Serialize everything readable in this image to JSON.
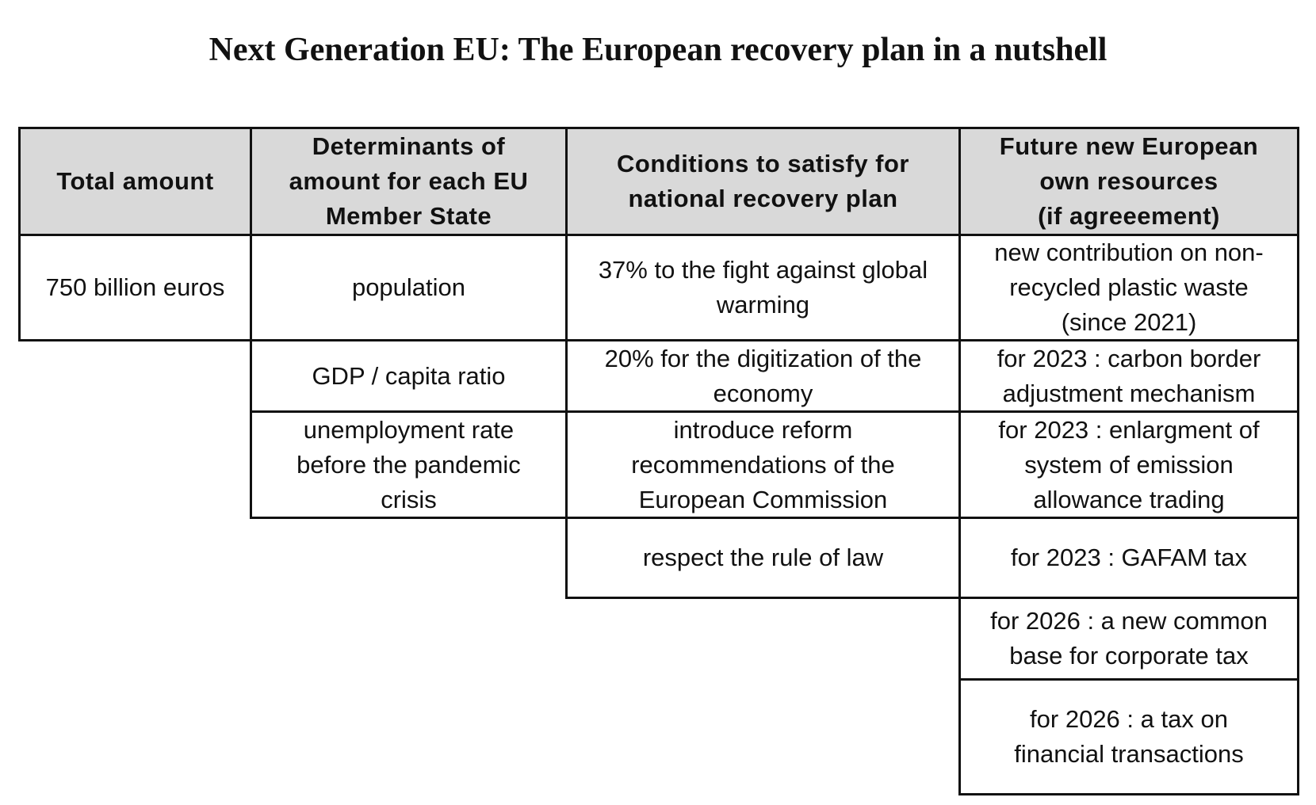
{
  "title": "Next Generation EU: The European recovery plan in a nutshell",
  "table": {
    "headers": [
      "Total amount",
      "Determinants of\namount for each EU\nMember State",
      "Conditions to satisfy for\nnational recovery plan",
      "Future new European\nown resources\n(if agreeement)"
    ],
    "total_amount": [
      "750 billion euros"
    ],
    "determinants": [
      "population",
      "GDP / capita ratio",
      "unemployment rate\nbefore the pandemic\ncrisis"
    ],
    "conditions": [
      "37% to the fight against global\nwarming",
      "20% for the digitization of the\neconomy",
      "introduce reform\nrecommendations of the\nEuropean Commission",
      "respect the rule of law"
    ],
    "own_resources": [
      "new contribution on non-\nrecycled plastic waste\n(since 2021)",
      "for 2023 : carbon border\nadjustment mechanism",
      "for 2023 : enlargment of\nsystem of emission\nallowance trading",
      "for 2023 :  GAFAM tax",
      "for 2026 : a new common\nbase for corporate tax",
      "for 2026 : a tax on\nfinancial transactions"
    ]
  }
}
